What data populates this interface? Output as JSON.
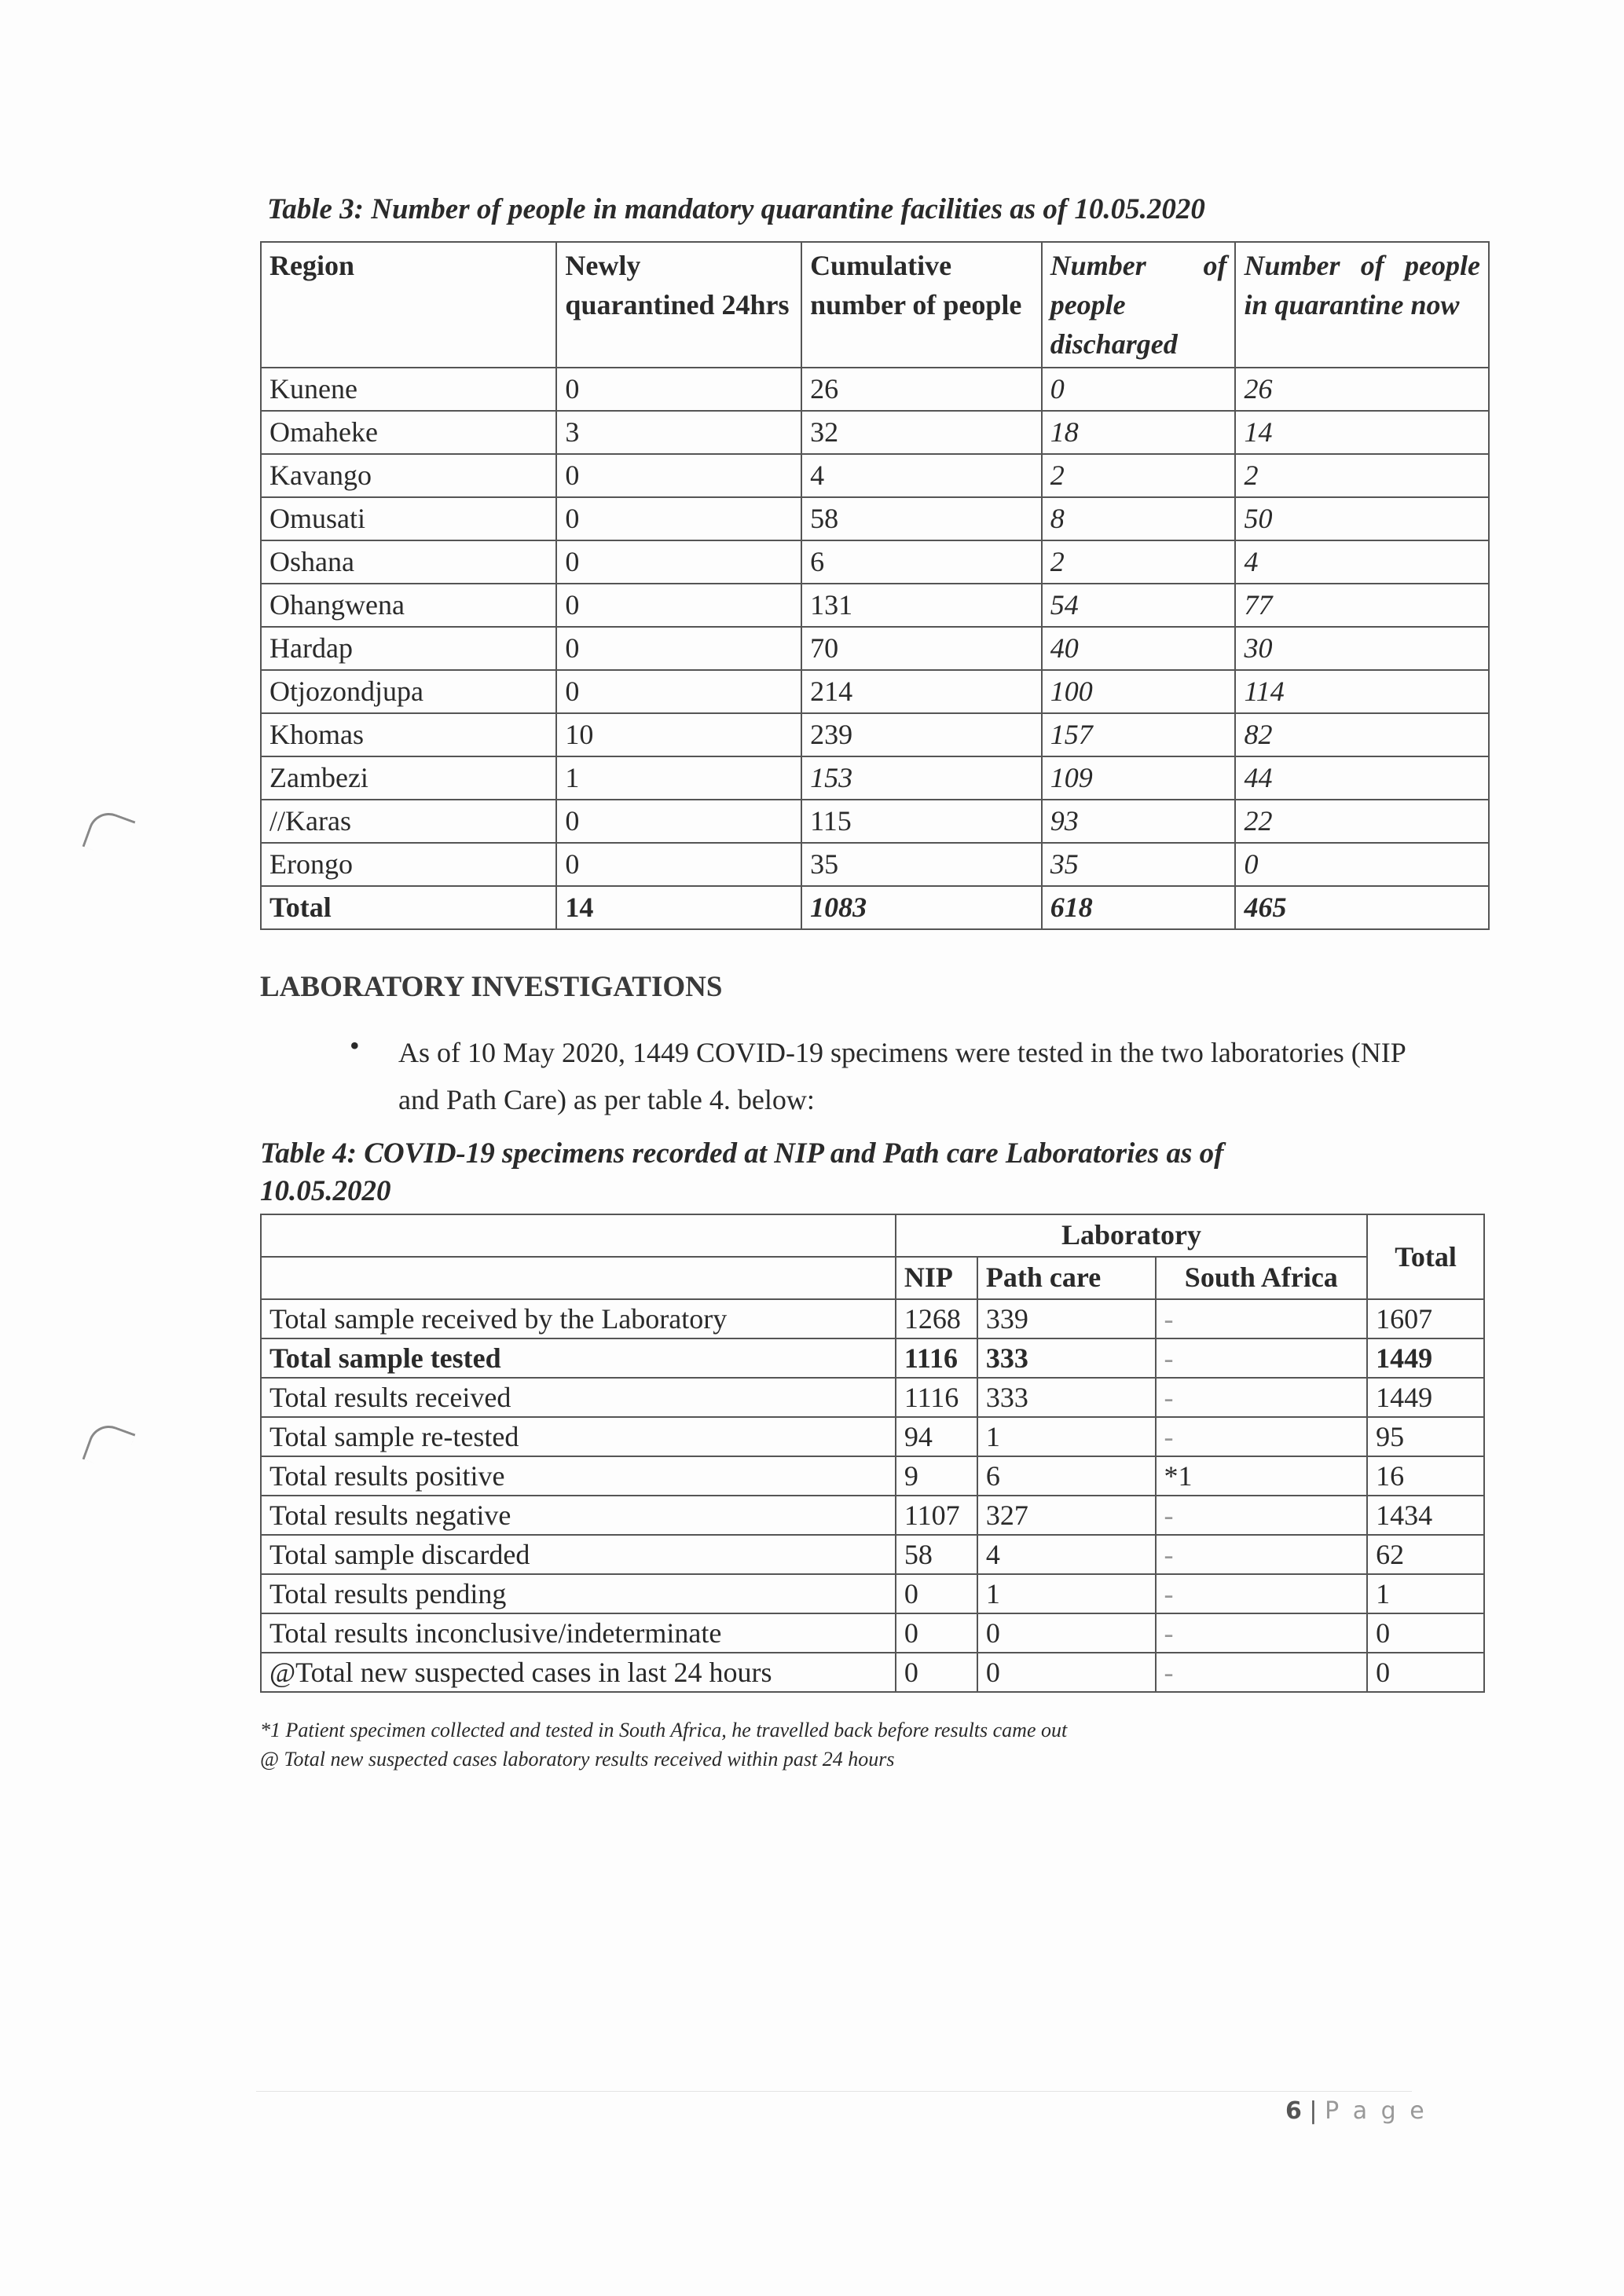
{
  "table3": {
    "caption": "Table 3: Number of people in mandatory quarantine facilities as of 10.05.2020",
    "headers": [
      "Region",
      "Newly quarantined 24hrs",
      "Cumulative number of people",
      "Number of people discharged",
      "Number of people in quarantine now"
    ],
    "rows": [
      [
        "Kunene",
        "0",
        "26",
        "0",
        "26"
      ],
      [
        "Omaheke",
        "3",
        "32",
        "18",
        "14"
      ],
      [
        "Kavango",
        "0",
        "4",
        "2",
        "2"
      ],
      [
        "Omusati",
        "0",
        "58",
        "8",
        "50"
      ],
      [
        "Oshana",
        "0",
        "6",
        "2",
        "4"
      ],
      [
        "Ohangwena",
        "0",
        "131",
        "54",
        "77"
      ],
      [
        "Hardap",
        "0",
        "70",
        "40",
        "30"
      ],
      [
        "Otjozondjupa",
        "0",
        "214",
        "100",
        "114"
      ],
      [
        "Khomas",
        "10",
        "239",
        "157",
        "82"
      ],
      [
        "Zambezi",
        "1",
        "153",
        "109",
        "44"
      ],
      [
        "//Karas",
        "0",
        "115",
        "93",
        "22"
      ],
      [
        "Erongo",
        "0",
        "35",
        "35",
        "0"
      ]
    ],
    "total": [
      "Total",
      "14",
      "1083",
      "618",
      "465"
    ]
  },
  "lab": {
    "heading": "LABORATORY INVESTIGATIONS",
    "bullet": "As of 10 May 2020, 1449 COVID-19 specimens were tested in the two laboratories (NIP and Path Care) as per table 4. below:"
  },
  "table4": {
    "caption_line1": "Table 4: COVID-19 specimens recorded at NIP and Path care Laboratories as of",
    "caption_line2": "10.05.2020",
    "group_header": "Laboratory",
    "total_header": "Total",
    "sub_headers": [
      "NIP",
      "Path care",
      "South Africa"
    ],
    "rows": [
      [
        "Total sample received by the Laboratory",
        "1268",
        "339",
        "-",
        "1607"
      ],
      [
        "Total sample tested",
        "1116",
        "333",
        "-",
        "1449"
      ],
      [
        "Total results received",
        "1116",
        "333",
        "-",
        "1449"
      ],
      [
        "Total sample re-tested",
        "94",
        "1",
        "-",
        "95"
      ],
      [
        "Total results positive",
        "9",
        "6",
        "*1",
        "16"
      ],
      [
        "Total results negative",
        "1107",
        "327",
        "-",
        "1434"
      ],
      [
        "Total sample discarded",
        "58",
        "4",
        "-",
        "62"
      ],
      [
        "Total results pending",
        "0",
        "1",
        "-",
        "1"
      ],
      [
        "Total results inconclusive/indeterminate",
        "0",
        "0",
        "-",
        "0"
      ],
      [
        "@Total new suspected cases in last 24 hours",
        "0",
        "0",
        "-",
        "0"
      ]
    ],
    "footnote1": "*1 Patient specimen collected and tested in South Africa, he travelled back before results came out",
    "footnote2": "@ Total new suspected cases laboratory results received within past 24 hours"
  },
  "footer": {
    "page_number": "6",
    "page_label": "P a g e"
  }
}
